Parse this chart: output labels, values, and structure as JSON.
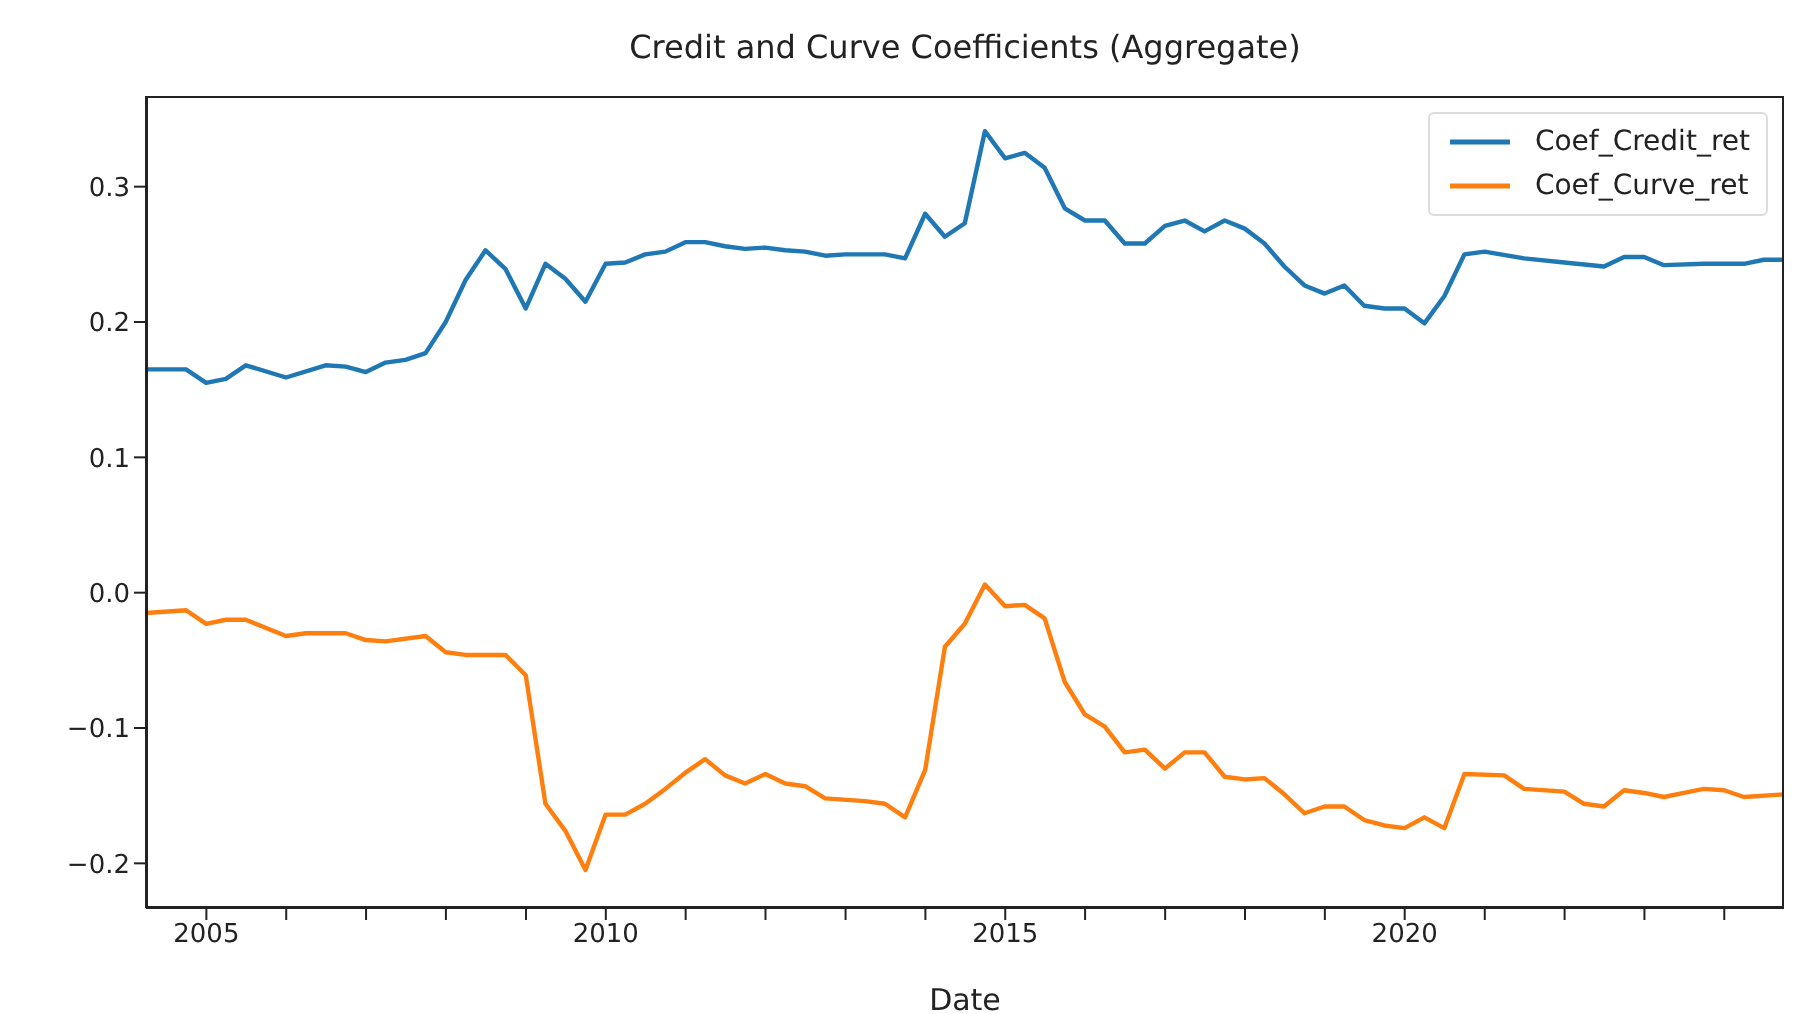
{
  "chart_data": {
    "type": "line",
    "title": "Credit and Curve Coefficients (Aggregate)",
    "xlabel": "Date",
    "xlim": [
      "2004-03-31",
      "2024-09-30"
    ],
    "ylim": [
      -0.233,
      0.367
    ],
    "xticks": [
      {
        "value": "2005",
        "label": "2005"
      },
      {
        "value": "2006",
        "label": null
      },
      {
        "value": "2007",
        "label": null
      },
      {
        "value": "2008",
        "label": null
      },
      {
        "value": "2009",
        "label": null
      },
      {
        "value": "2010",
        "label": "2010"
      },
      {
        "value": "2011",
        "label": null
      },
      {
        "value": "2012",
        "label": null
      },
      {
        "value": "2013",
        "label": null
      },
      {
        "value": "2014",
        "label": null
      },
      {
        "value": "2015",
        "label": "2015"
      },
      {
        "value": "2016",
        "label": null
      },
      {
        "value": "2017",
        "label": null
      },
      {
        "value": "2018",
        "label": null
      },
      {
        "value": "2019",
        "label": null
      },
      {
        "value": "2020",
        "label": "2020"
      },
      {
        "value": "2021",
        "label": null
      },
      {
        "value": "2022",
        "label": null
      },
      {
        "value": "2023",
        "label": null
      },
      {
        "value": "2024",
        "label": null
      }
    ],
    "yticks": [
      -0.2,
      -0.1,
      {
        "value": 0,
        "label": "0.0"
      },
      0.1,
      0.2,
      0.3
    ],
    "grid": false,
    "legend": "top right",
    "line_style": "solid",
    "marker": "none",
    "series": [
      {
        "name": "Coef_Credit_ret",
        "color": "#1f77b4",
        "x": [
          "2004-03-31",
          "2004-09-30",
          "2004-12-31",
          "2005-03-31",
          "2005-06-30",
          "2005-12-31",
          "2006-06-30",
          "2006-09-30",
          "2006-12-31",
          "2007-03-31",
          "2007-06-30",
          "2007-09-30",
          "2007-12-31",
          "2008-03-31",
          "2008-06-30",
          "2008-09-30",
          "2008-12-31",
          "2009-03-31",
          "2009-06-30",
          "2009-09-30",
          "2009-12-31",
          "2010-03-31",
          "2010-06-30",
          "2010-09-30",
          "2010-12-31",
          "2011-03-31",
          "2011-06-30",
          "2011-09-30",
          "2011-12-31",
          "2012-03-31",
          "2012-06-30",
          "2012-09-30",
          "2012-12-31",
          "2013-06-30",
          "2013-09-30",
          "2013-12-31",
          "2014-03-31",
          "2014-06-30",
          "2014-09-30",
          "2014-12-31",
          "2015-03-31",
          "2015-06-30",
          "2015-09-30",
          "2015-12-31",
          "2016-03-31",
          "2016-06-30",
          "2016-09-30",
          "2016-12-31",
          "2017-03-31",
          "2017-06-30",
          "2017-09-30",
          "2017-12-31",
          "2018-03-31",
          "2018-06-30",
          "2018-09-30",
          "2018-12-31",
          "2019-03-31",
          "2019-06-30",
          "2019-09-30",
          "2019-12-31",
          "2020-03-31",
          "2020-06-30",
          "2020-09-30",
          "2020-12-31",
          "2021-06-30",
          "2021-12-31",
          "2022-06-30",
          "2022-09-30",
          "2022-12-31",
          "2023-03-31",
          "2023-09-30",
          "2024-03-31",
          "2024-06-30",
          "2024-09-30"
        ],
        "values": [
          0.165,
          0.165,
          0.155,
          0.158,
          0.168,
          0.159,
          0.168,
          0.167,
          0.163,
          0.17,
          0.172,
          0.177,
          0.2,
          0.231,
          0.253,
          0.239,
          0.21,
          0.243,
          0.232,
          0.215,
          0.243,
          0.244,
          0.25,
          0.252,
          0.259,
          0.259,
          0.256,
          0.254,
          0.255,
          0.253,
          0.252,
          0.249,
          0.25,
          0.25,
          0.247,
          0.28,
          0.263,
          0.273,
          0.341,
          0.321,
          0.325,
          0.314,
          0.284,
          0.275,
          0.275,
          0.258,
          0.258,
          0.271,
          0.275,
          0.267,
          0.275,
          0.269,
          0.258,
          0.241,
          0.227,
          0.221,
          0.227,
          0.212,
          0.21,
          0.21,
          0.199,
          0.219,
          0.25,
          0.252,
          0.247,
          0.244,
          0.241,
          0.248,
          0.248,
          0.242,
          0.243,
          0.243,
          0.246,
          0.246
        ]
      },
      {
        "name": "Coef_Curve_ret",
        "color": "#ff7f0e",
        "x": [
          "2004-03-31",
          "2004-09-30",
          "2004-12-31",
          "2005-03-31",
          "2005-06-30",
          "2005-12-31",
          "2006-03-31",
          "2006-09-30",
          "2006-12-31",
          "2007-03-31",
          "2007-09-30",
          "2007-12-31",
          "2008-03-31",
          "2008-09-30",
          "2008-12-31",
          "2009-03-31",
          "2009-06-30",
          "2009-09-30",
          "2009-12-31",
          "2010-03-31",
          "2010-06-30",
          "2010-09-30",
          "2010-12-31",
          "2011-03-31",
          "2011-06-30",
          "2011-09-30",
          "2011-12-31",
          "2012-03-31",
          "2012-06-30",
          "2012-09-30",
          "2013-03-31",
          "2013-06-30",
          "2013-09-30",
          "2013-12-31",
          "2014-03-31",
          "2014-06-30",
          "2014-09-30",
          "2014-12-31",
          "2015-03-31",
          "2015-06-30",
          "2015-09-30",
          "2015-12-31",
          "2016-03-31",
          "2016-06-30",
          "2016-09-30",
          "2016-12-31",
          "2017-03-31",
          "2017-06-30",
          "2017-09-30",
          "2017-12-31",
          "2018-03-31",
          "2018-06-30",
          "2018-09-30",
          "2018-12-31",
          "2019-03-31",
          "2019-06-30",
          "2019-09-30",
          "2019-12-31",
          "2020-03-31",
          "2020-06-30",
          "2020-09-30",
          "2021-03-31",
          "2021-06-30",
          "2021-12-31",
          "2022-03-31",
          "2022-06-30",
          "2022-09-30",
          "2022-12-31",
          "2023-03-31",
          "2023-06-30",
          "2023-09-30",
          "2023-12-31",
          "2024-03-31",
          "2024-09-30"
        ],
        "values": [
          -0.015,
          -0.013,
          -0.023,
          -0.02,
          -0.02,
          -0.032,
          -0.03,
          -0.03,
          -0.035,
          -0.036,
          -0.032,
          -0.044,
          -0.046,
          -0.046,
          -0.061,
          -0.156,
          -0.176,
          -0.205,
          -0.164,
          -0.164,
          -0.156,
          -0.145,
          -0.133,
          -0.123,
          -0.135,
          -0.141,
          -0.134,
          -0.141,
          -0.143,
          -0.152,
          -0.154,
          -0.156,
          -0.166,
          -0.131,
          -0.04,
          -0.023,
          0.006,
          -0.01,
          -0.009,
          -0.019,
          -0.066,
          -0.09,
          -0.099,
          -0.118,
          -0.116,
          -0.13,
          -0.118,
          -0.118,
          -0.136,
          -0.138,
          -0.137,
          -0.149,
          -0.163,
          -0.158,
          -0.158,
          -0.168,
          -0.172,
          -0.174,
          -0.166,
          -0.174,
          -0.134,
          -0.135,
          -0.145,
          -0.147,
          -0.156,
          -0.158,
          -0.146,
          -0.148,
          -0.151,
          -0.148,
          -0.145,
          -0.146,
          -0.151,
          -0.149
        ]
      }
    ]
  }
}
